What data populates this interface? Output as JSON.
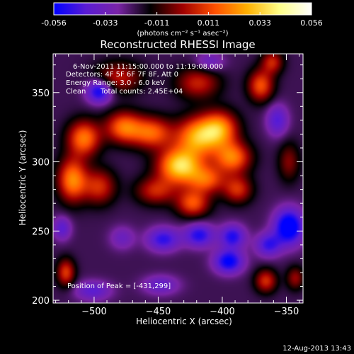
{
  "colorbar": {
    "tick_labels": [
      "-0.056",
      "-0.033",
      "-0.011",
      "0.011",
      "0.033",
      "0.056"
    ],
    "unit_label": "(photons cm⁻² s⁻¹ asec⁻²)",
    "range": [
      -0.056,
      0.056
    ]
  },
  "title": "Reconstructed RHESSI Image",
  "annotations": {
    "time_range": "6-Nov-2011 11:15:00.000 to 11:19:08.000",
    "detectors": "Detectors: 4F 5F 6F 7F 8F, Att 0",
    "energy_range": "Energy Range: 3.0 - 6.0 keV",
    "method": "Clean",
    "total_counts": "Total counts: 2.45E+04",
    "peak_position": "Position of Peak = [-431,299]"
  },
  "footer": {
    "timestamp": "12-Aug-2013 13:43"
  },
  "chart_data": {
    "type": "heatmap",
    "title": "Reconstructed RHESSI Image",
    "xlabel": "Heliocentric X (arcsec)",
    "ylabel": "Heliocentric Y (arcsec)",
    "xlim": [
      -532,
      -337
    ],
    "ylim": [
      198,
      378
    ],
    "x_ticks": [
      -500,
      -450,
      -400,
      -350
    ],
    "y_ticks": [
      200,
      250,
      300,
      350
    ],
    "x_tick_labels": [
      "−500",
      "−450",
      "−400",
      "−350"
    ],
    "y_tick_labels": [
      "200",
      "250",
      "300",
      "350"
    ],
    "colormap": [
      "#0000ff",
      "#5a1cd4",
      "#7a24a6",
      "#000000",
      "#a00000",
      "#ff5000",
      "#ffb000",
      "#ffff88",
      "#ffffff"
    ],
    "value_range": [
      -0.056,
      0.056
    ],
    "peak": {
      "x": -431,
      "y": 299
    },
    "sources": [
      {
        "x": -433,
        "y": 297,
        "amplitude": 0.056,
        "sx": 12,
        "sy": 9
      },
      {
        "x": -419,
        "y": 318,
        "amplitude": 0.046,
        "sx": 12,
        "sy": 10
      },
      {
        "x": -402,
        "y": 324,
        "amplitude": 0.04,
        "sx": 10,
        "sy": 9
      },
      {
        "x": -392,
        "y": 303,
        "amplitude": 0.04,
        "sx": 10,
        "sy": 8
      },
      {
        "x": -455,
        "y": 321,
        "amplitude": 0.036,
        "sx": 11,
        "sy": 8
      },
      {
        "x": -477,
        "y": 325,
        "amplitude": 0.038,
        "sx": 10,
        "sy": 8
      },
      {
        "x": -508,
        "y": 317,
        "amplitude": 0.04,
        "sx": 9,
        "sy": 9
      },
      {
        "x": -517,
        "y": 287,
        "amplitude": 0.042,
        "sx": 8,
        "sy": 11
      },
      {
        "x": -496,
        "y": 282,
        "amplitude": 0.028,
        "sx": 9,
        "sy": 9
      },
      {
        "x": -452,
        "y": 279,
        "amplitude": 0.026,
        "sx": 11,
        "sy": 7
      },
      {
        "x": -423,
        "y": 270,
        "amplitude": 0.034,
        "sx": 9,
        "sy": 7
      },
      {
        "x": -412,
        "y": 287,
        "amplitude": 0.032,
        "sx": 10,
        "sy": 7
      },
      {
        "x": -388,
        "y": 280,
        "amplitude": 0.028,
        "sx": 8,
        "sy": 7
      },
      {
        "x": -481,
        "y": 361,
        "amplitude": 0.024,
        "sx": 13,
        "sy": 8
      },
      {
        "x": -419,
        "y": 357,
        "amplitude": 0.026,
        "sx": 12,
        "sy": 8
      },
      {
        "x": -370,
        "y": 355,
        "amplitude": 0.034,
        "sx": 7,
        "sy": 8
      },
      {
        "x": -361,
        "y": 372,
        "amplitude": 0.026,
        "sx": 6,
        "sy": 6
      },
      {
        "x": -348,
        "y": 300,
        "amplitude": 0.018,
        "sx": 6,
        "sy": 10
      },
      {
        "x": -366,
        "y": 214,
        "amplitude": 0.028,
        "sx": 6,
        "sy": 6
      },
      {
        "x": -343,
        "y": 216,
        "amplitude": 0.02,
        "sx": 5,
        "sy": 6
      },
      {
        "x": -522,
        "y": 220,
        "amplitude": 0.03,
        "sx": 5,
        "sy": 7
      },
      {
        "x": -496,
        "y": 351,
        "amplitude": -0.036,
        "sx": 7,
        "sy": 6
      },
      {
        "x": -348,
        "y": 253,
        "amplitude": -0.044,
        "sx": 8,
        "sy": 9
      },
      {
        "x": -395,
        "y": 228,
        "amplitude": -0.036,
        "sx": 8,
        "sy": 6
      },
      {
        "x": -446,
        "y": 244,
        "amplitude": -0.028,
        "sx": 9,
        "sy": 6
      },
      {
        "x": -418,
        "y": 247,
        "amplitude": -0.03,
        "sx": 8,
        "sy": 6
      },
      {
        "x": -392,
        "y": 246,
        "amplitude": -0.03,
        "sx": 7,
        "sy": 6
      },
      {
        "x": -364,
        "y": 240,
        "amplitude": -0.026,
        "sx": 7,
        "sy": 6
      },
      {
        "x": -501,
        "y": 207,
        "amplitude": -0.02,
        "sx": 10,
        "sy": 5
      },
      {
        "x": -448,
        "y": 211,
        "amplitude": -0.018,
        "sx": 10,
        "sy": 5
      },
      {
        "x": -357,
        "y": 330,
        "amplitude": -0.022,
        "sx": 6,
        "sy": 8
      },
      {
        "x": -410,
        "y": 372,
        "amplitude": -0.016,
        "sx": 8,
        "sy": 5
      },
      {
        "x": -478,
        "y": 245,
        "amplitude": -0.014,
        "sx": 7,
        "sy": 6
      },
      {
        "x": -525,
        "y": 252,
        "amplitude": -0.02,
        "sx": 5,
        "sy": 6
      }
    ],
    "background": -0.021
  }
}
